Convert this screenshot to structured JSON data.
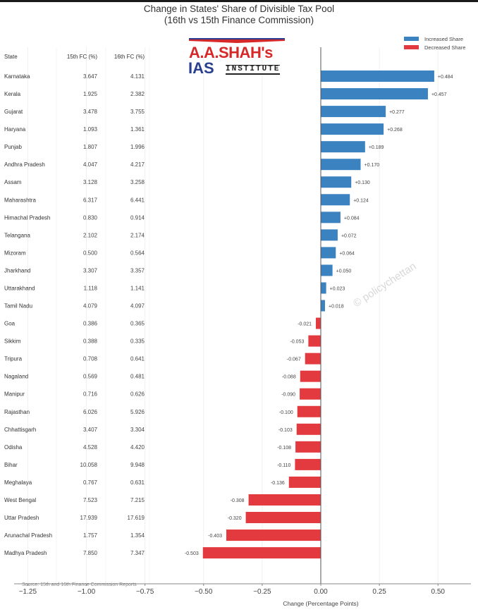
{
  "chart_data": {
    "type": "bar",
    "orientation": "horizontal",
    "title": "Change in States' Share of Divisible Tax Pool",
    "subtitle": "(16th vs 15th Finance Commission)",
    "xlabel": "Change (Percentage Points)",
    "ylabel": "",
    "xlim": [
      -1.25,
      0.62
    ],
    "x_ticks": [
      -1.25,
      -1.0,
      -0.75,
      -0.5,
      -0.25,
      0.0,
      0.25,
      0.5
    ],
    "x_tick_labels": [
      "−1.25",
      "−1.00",
      "−0.75",
      "−0.50",
      "−0.25",
      "0.00",
      "0.25",
      "0.50"
    ],
    "grid": "vertical",
    "legend_position": "top-right",
    "legend": [
      {
        "label": "Increased Share",
        "color": "#3b82c0"
      },
      {
        "label": "Decreased Share",
        "color": "#e23a3f"
      }
    ],
    "table_headers": [
      "State",
      "15th FC (%)",
      "16th FC (%)"
    ],
    "rows": [
      {
        "state": "Karnataka",
        "fc15": "3.647",
        "fc16": "4.131",
        "change": 0.484,
        "label": "+0.484"
      },
      {
        "state": "Kerala",
        "fc15": "1.925",
        "fc16": "2.382",
        "change": 0.457,
        "label": "+0.457"
      },
      {
        "state": "Gujarat",
        "fc15": "3.478",
        "fc16": "3.755",
        "change": 0.277,
        "label": "+0.277"
      },
      {
        "state": "Haryana",
        "fc15": "1.093",
        "fc16": "1.361",
        "change": 0.268,
        "label": "+0.268"
      },
      {
        "state": "Punjab",
        "fc15": "1.807",
        "fc16": "1.996",
        "change": 0.189,
        "label": "+0.189"
      },
      {
        "state": "Andhra Pradesh",
        "fc15": "4.047",
        "fc16": "4.217",
        "change": 0.17,
        "label": "+0.170"
      },
      {
        "state": "Assam",
        "fc15": "3.128",
        "fc16": "3.258",
        "change": 0.13,
        "label": "+0.130"
      },
      {
        "state": "Maharashtra",
        "fc15": "6.317",
        "fc16": "6.441",
        "change": 0.124,
        "label": "+0.124"
      },
      {
        "state": "Himachal Pradesh",
        "fc15": "0.830",
        "fc16": "0.914",
        "change": 0.084,
        "label": "+0.084"
      },
      {
        "state": "Telangana",
        "fc15": "2.102",
        "fc16": "2.174",
        "change": 0.072,
        "label": "+0.072"
      },
      {
        "state": "Mizoram",
        "fc15": "0.500",
        "fc16": "0.564",
        "change": 0.064,
        "label": "+0.064"
      },
      {
        "state": "Jharkhand",
        "fc15": "3.307",
        "fc16": "3.357",
        "change": 0.05,
        "label": "+0.050"
      },
      {
        "state": "Uttarakhand",
        "fc15": "1.118",
        "fc16": "1.141",
        "change": 0.023,
        "label": "+0.023"
      },
      {
        "state": "Tamil Nadu",
        "fc15": "4.079",
        "fc16": "4.097",
        "change": 0.018,
        "label": "+0.018"
      },
      {
        "state": "Goa",
        "fc15": "0.386",
        "fc16": "0.365",
        "change": -0.021,
        "label": "-0.021"
      },
      {
        "state": "Sikkim",
        "fc15": "0.388",
        "fc16": "0.335",
        "change": -0.053,
        "label": "-0.053"
      },
      {
        "state": "Tripura",
        "fc15": "0.708",
        "fc16": "0.641",
        "change": -0.067,
        "label": "-0.067"
      },
      {
        "state": "Nagaland",
        "fc15": "0.569",
        "fc16": "0.481",
        "change": -0.088,
        "label": "-0.088"
      },
      {
        "state": "Manipur",
        "fc15": "0.716",
        "fc16": "0.626",
        "change": -0.09,
        "label": "-0.090"
      },
      {
        "state": "Rajasthan",
        "fc15": "6.026",
        "fc16": "5.926",
        "change": -0.1,
        "label": "-0.100"
      },
      {
        "state": "Chhattisgarh",
        "fc15": "3.407",
        "fc16": "3.304",
        "change": -0.103,
        "label": "-0.103"
      },
      {
        "state": "Odisha",
        "fc15": "4.528",
        "fc16": "4.420",
        "change": -0.108,
        "label": "-0.108"
      },
      {
        "state": "Bihar",
        "fc15": "10.058",
        "fc16": "9.948",
        "change": -0.11,
        "label": "-0.110"
      },
      {
        "state": "Meghalaya",
        "fc15": "0.767",
        "fc16": "0.631",
        "change": -0.136,
        "label": "-0.136"
      },
      {
        "state": "West Bengal",
        "fc15": "7.523",
        "fc16": "7.215",
        "change": -0.308,
        "label": "-0.308"
      },
      {
        "state": "Uttar Pradesh",
        "fc15": "17.939",
        "fc16": "17.619",
        "change": -0.32,
        "label": "-0.320"
      },
      {
        "state": "Arunachal Pradesh",
        "fc15": "1.757",
        "fc16": "1.354",
        "change": -0.403,
        "label": "-0.403"
      },
      {
        "state": "Madhya Pradesh",
        "fc15": "7.850",
        "fc16": "7.347",
        "change": -0.503,
        "label": "-0.503"
      }
    ],
    "source": "Source: 15th and 16th Finance Commission Reports",
    "watermark": "© policychettan"
  },
  "logo": {
    "line1": "A.A.SHAH's",
    "line2_bold": "IAS",
    "line2_rest": "INSTITUTE"
  }
}
